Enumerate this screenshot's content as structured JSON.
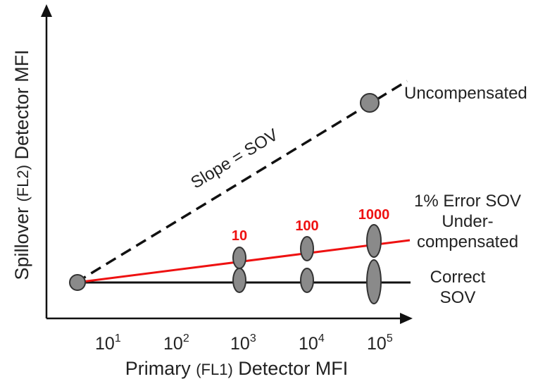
{
  "diagram": {
    "x_axis": {
      "title_main_1": "Primary ",
      "title_small": "(FL1)",
      "title_main_2": " Detector MFI",
      "ticks": [
        {
          "base": "10",
          "exp": "1"
        },
        {
          "base": "10",
          "exp": "2"
        },
        {
          "base": "10",
          "exp": "3"
        },
        {
          "base": "10",
          "exp": "4"
        },
        {
          "base": "10",
          "exp": "5"
        }
      ]
    },
    "y_axis": {
      "title_main_1": "Spillover ",
      "title_small": "(FL2)",
      "title_main_2": " Detector MFI"
    },
    "lines": {
      "uncompensated_label": "Uncompensated",
      "slope_label": "Slope = SOV",
      "under_label_line1": "1% Error SOV",
      "under_label_line2": "Under-",
      "under_label_line3": "compensated",
      "correct_label_line1": "Correct",
      "correct_label_line2": "SOV"
    },
    "counts": [
      "10",
      "100",
      "1000"
    ],
    "colors": {
      "axis": "#111111",
      "dashed_line": "#111111",
      "red_line": "#ee1111",
      "correct_line": "#111111",
      "population_fill": "#8a8a8a",
      "population_stroke": "#333333",
      "count_text": "#ee1111"
    }
  }
}
